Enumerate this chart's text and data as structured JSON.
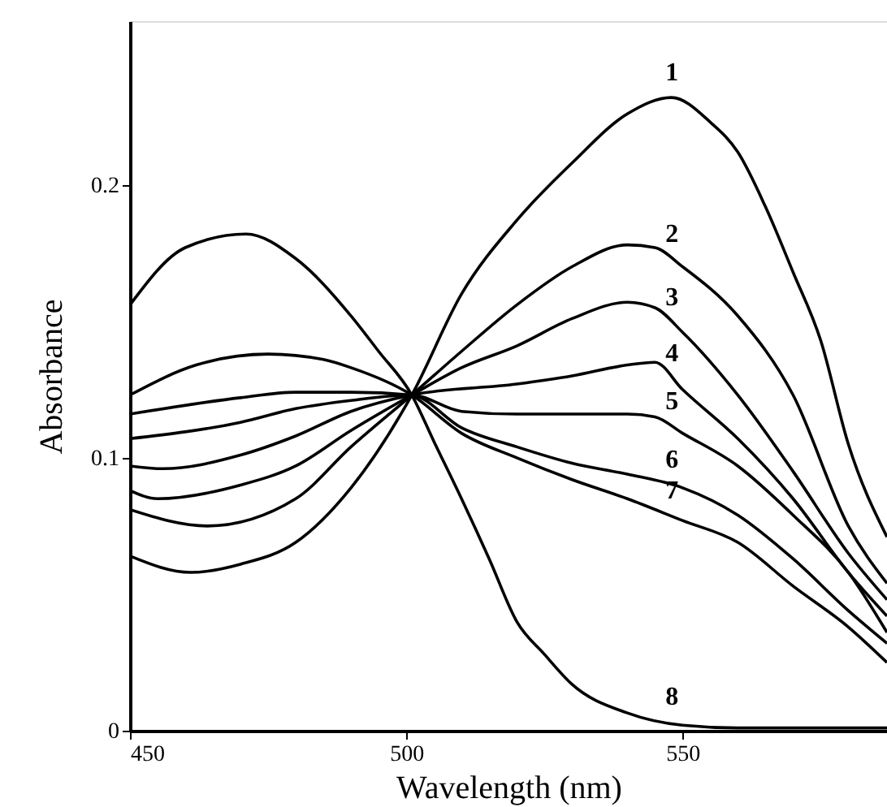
{
  "chart_data": {
    "type": "line",
    "xlabel": "Wavelength (nm)",
    "ylabel": "Absorbance",
    "xlim": [
      450,
      587
    ],
    "xticks": [
      450,
      500,
      550
    ],
    "ylim": [
      0,
      0.26
    ],
    "yticks": [
      {
        "value": 0,
        "label": "0"
      },
      {
        "value": 0.1,
        "label": "0.1"
      },
      {
        "value": 0.2,
        "label": "0.2"
      }
    ],
    "grid": false,
    "marker": "none",
    "line_style": "solid",
    "series": [
      {
        "name": "1",
        "color": "#000000",
        "x": [
          450,
          461,
          470,
          480,
          490,
          501,
          510,
          520,
          530,
          540,
          548,
          555,
          560,
          565,
          570,
          575,
          580,
          587
        ],
        "values": [
          0.064,
          0.058,
          0.061,
          0.069,
          0.089,
          0.123,
          0.16,
          0.187,
          0.208,
          0.226,
          0.232,
          0.223,
          0.212,
          0.192,
          0.168,
          0.143,
          0.105,
          0.071
        ]
      },
      {
        "name": "2",
        "color": "#000000",
        "x": [
          450,
          464,
          480,
          490,
          501,
          510,
          520,
          530,
          540,
          545,
          550,
          560,
          570,
          580,
          587
        ],
        "values": [
          0.081,
          0.075,
          0.085,
          0.104,
          0.123,
          0.139,
          0.156,
          0.17,
          0.178,
          0.177,
          0.17,
          0.152,
          0.123,
          0.075,
          0.054
        ]
      },
      {
        "name": "3",
        "color": "#000000",
        "x": [
          450,
          455,
          470,
          480,
          490,
          501,
          510,
          520,
          530,
          540,
          545,
          550,
          560,
          570,
          580,
          587
        ],
        "values": [
          0.088,
          0.085,
          0.09,
          0.097,
          0.11,
          0.123,
          0.133,
          0.141,
          0.151,
          0.157,
          0.155,
          0.146,
          0.123,
          0.095,
          0.065,
          0.048
        ]
      },
      {
        "name": "4",
        "color": "#000000",
        "x": [
          450,
          456,
          470,
          480,
          490,
          501,
          520,
          530,
          540,
          545,
          550,
          560,
          570,
          580,
          587
        ],
        "values": [
          0.097,
          0.096,
          0.101,
          0.108,
          0.117,
          0.123,
          0.127,
          0.13,
          0.134,
          0.135,
          0.125,
          0.107,
          0.085,
          0.058,
          0.042
        ]
      },
      {
        "name": "5",
        "color": "#000000",
        "x": [
          450,
          470,
          480,
          490,
          501,
          510,
          520,
          530,
          540,
          545,
          550,
          560,
          570,
          580,
          587
        ],
        "values": [
          0.107,
          0.113,
          0.118,
          0.121,
          0.123,
          0.117,
          0.116,
          0.116,
          0.116,
          0.115,
          0.109,
          0.097,
          0.079,
          0.058,
          0.036
        ]
      },
      {
        "name": "6",
        "color": "#000000",
        "x": [
          450,
          470,
          480,
          490,
          501,
          510,
          520,
          530,
          540,
          550,
          560,
          570,
          580,
          587
        ],
        "values": [
          0.116,
          0.122,
          0.124,
          0.124,
          0.123,
          0.111,
          0.104,
          0.098,
          0.094,
          0.089,
          0.079,
          0.063,
          0.044,
          0.032
        ]
      },
      {
        "name": "7",
        "color": "#000000",
        "x": [
          450,
          462,
          475,
          485,
          490,
          501,
          510,
          520,
          530,
          540,
          550,
          560,
          570,
          580,
          587
        ],
        "values": [
          0.123,
          0.134,
          0.138,
          0.136,
          0.133,
          0.123,
          0.109,
          0.1,
          0.092,
          0.085,
          0.077,
          0.069,
          0.053,
          0.038,
          0.025
        ]
      },
      {
        "name": "8",
        "color": "#000000",
        "x": [
          450,
          460,
          471,
          480,
          490,
          495,
          501,
          505,
          510,
          515,
          520,
          525,
          530,
          540,
          550,
          560,
          587
        ],
        "values": [
          0.156,
          0.177,
          0.182,
          0.173,
          0.152,
          0.139,
          0.123,
          0.106,
          0.085,
          0.063,
          0.04,
          0.028,
          0.017,
          0.0065,
          0.002,
          0.001,
          0.001
        ]
      }
    ]
  }
}
